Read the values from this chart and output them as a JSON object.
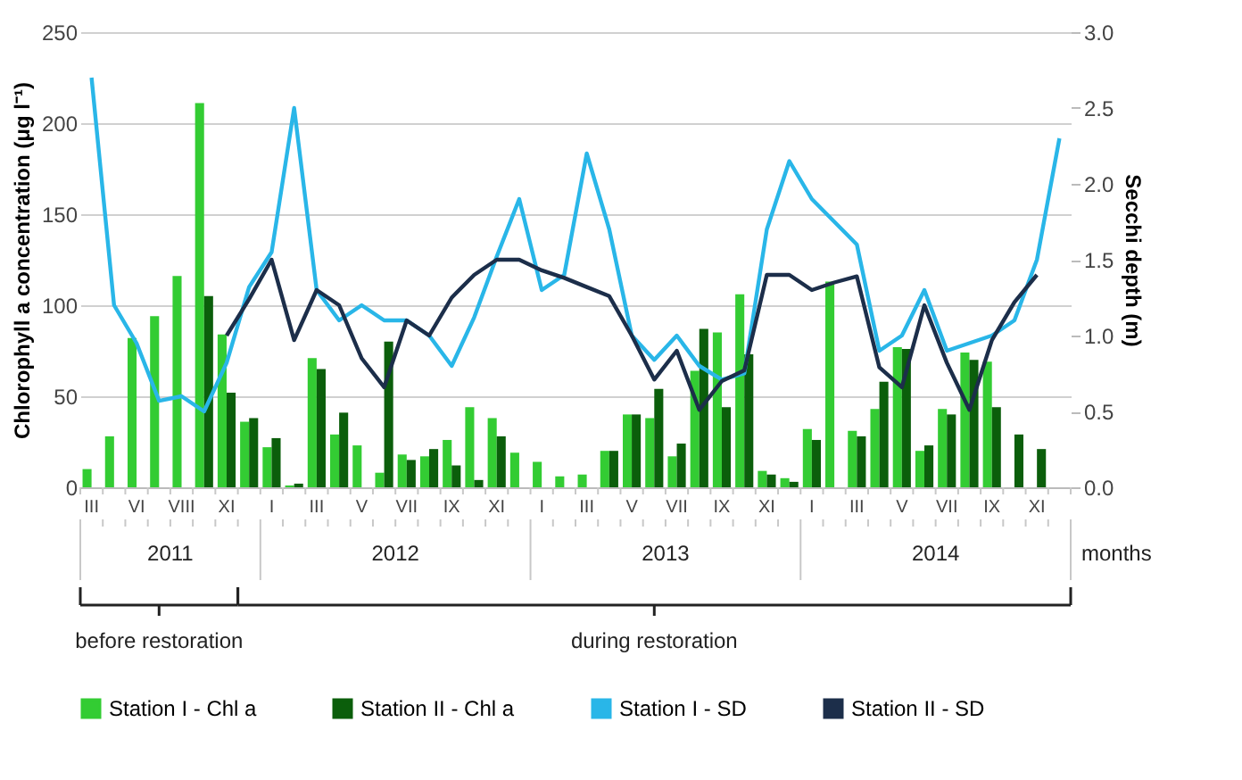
{
  "chart_data": {
    "type": "bar",
    "ylabel": "Chlorophyll a concentration (μg l⁻¹)",
    "y2label": "Secchi depth (m)",
    "xlabel": "months",
    "categories": [
      "III",
      null,
      "VI",
      null,
      "VIII",
      null,
      "XI",
      null,
      "I",
      null,
      "III",
      null,
      "V",
      null,
      "VII",
      null,
      "IX",
      null,
      "XI",
      null,
      "I",
      null,
      "III",
      null,
      "V",
      null,
      "VII",
      null,
      "IX",
      null,
      "XI",
      null,
      "I",
      null,
      "III",
      null,
      "V",
      null,
      "VII",
      null,
      "IX",
      null,
      "XI",
      null
    ],
    "series": [
      {
        "name": "Station I - Chl a",
        "color": "#33cc33",
        "values": [
          10,
          28,
          82,
          94,
          116,
          211,
          84,
          36,
          22,
          1,
          71,
          29,
          23,
          8,
          18,
          17,
          26,
          44,
          38,
          19,
          14,
          6,
          7,
          20,
          40,
          38,
          17,
          64,
          85,
          106,
          9,
          5,
          32,
          113,
          31,
          43,
          77,
          20,
          43,
          74,
          69,
          null,
          null,
          null
        ]
      },
      {
        "name": "Station II - Chl a",
        "color": "#0b5e0b",
        "values": [
          null,
          null,
          null,
          null,
          null,
          105,
          52,
          38,
          27,
          2,
          65,
          41,
          null,
          80,
          15,
          21,
          12,
          4,
          28,
          null,
          null,
          null,
          null,
          20,
          40,
          54,
          24,
          87,
          44,
          73,
          7,
          3,
          26,
          null,
          28,
          58,
          76,
          23,
          40,
          70,
          44,
          29,
          21,
          null
        ]
      },
      {
        "name": "Station I - SD",
        "type": "line",
        "axis": "y2",
        "color": "#29b6e8",
        "values": [
          2.7,
          1.2,
          0.95,
          0.57,
          0.6,
          0.5,
          0.82,
          1.32,
          1.55,
          2.5,
          1.3,
          1.1,
          1.2,
          1.1,
          1.1,
          1.0,
          0.8,
          1.12,
          1.52,
          1.9,
          1.3,
          1.4,
          2.2,
          1.7,
          1.0,
          0.84,
          1.0,
          0.8,
          0.71,
          0.75,
          1.7,
          2.15,
          1.9,
          1.75,
          1.6,
          0.9,
          1.0,
          1.3,
          0.9,
          0.95,
          1.0,
          1.1,
          1.5,
          2.3
        ]
      },
      {
        "name": "Station II - SD",
        "type": "line",
        "axis": "y2",
        "color": "#1c2e4a",
        "values": [
          null,
          null,
          null,
          null,
          null,
          null,
          1.0,
          1.24,
          1.5,
          0.97,
          1.3,
          1.2,
          0.85,
          0.66,
          1.1,
          1.0,
          1.25,
          1.4,
          1.5,
          1.5,
          1.43,
          1.38,
          1.32,
          1.26,
          1.0,
          0.71,
          0.9,
          0.51,
          0.7,
          0.77,
          1.4,
          1.4,
          1.3,
          1.35,
          1.39,
          0.79,
          0.66,
          1.2,
          0.82,
          0.51,
          0.97,
          1.22,
          1.4,
          null
        ]
      }
    ],
    "ylim": [
      0,
      250
    ],
    "yticks": [
      0,
      50,
      100,
      150,
      200,
      250
    ],
    "y2lim": [
      0,
      3
    ],
    "y2ticks": [
      {
        "value": 0,
        "label": "0.0"
      },
      {
        "value": 0.5,
        "label": "0.5"
      },
      {
        "value": 1,
        "label": "1.0"
      },
      {
        "value": 1.5,
        "label": "1.5"
      },
      {
        "value": 2,
        "label": "2.0"
      },
      {
        "value": 2.5,
        "label": "2.5"
      },
      {
        "value": 3,
        "label": "3.0"
      }
    ],
    "grid": "y",
    "legend": "bottom",
    "line_style": "solid",
    "marker": "none",
    "annotations": [
      "2011",
      "2012",
      "2013",
      "2014",
      "before restoration",
      "during restoration"
    ]
  }
}
